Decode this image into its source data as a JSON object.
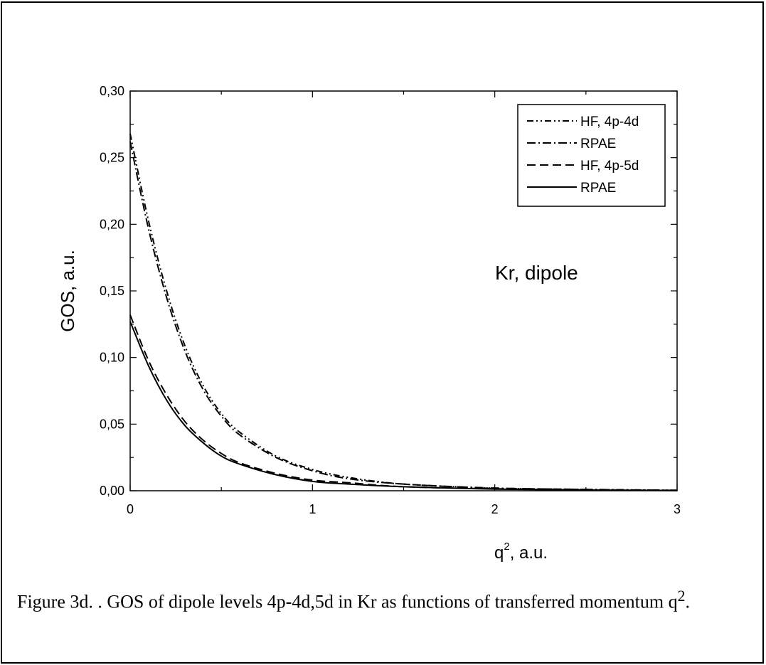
{
  "chart_data": {
    "type": "line",
    "xlabel_main": "q",
    "xlabel_sup": "2",
    "xlabel_rest": ", a.u.",
    "ylabel": "GOS,  a.u.",
    "annotation": "Kr, dipole",
    "xlim": [
      0,
      3
    ],
    "ylim": [
      0,
      0.3
    ],
    "xticks": [
      0,
      1,
      2,
      3
    ],
    "xtick_labels": [
      "0",
      "1",
      "2",
      "3"
    ],
    "yticks": [
      0,
      0.05,
      0.1,
      0.15,
      0.2,
      0.25,
      0.3
    ],
    "ytick_labels": [
      "0,00",
      "0,05",
      "0,10",
      "0,15",
      "0,20",
      "0,25",
      "0,30"
    ],
    "grid": false,
    "legend_position": "top-right",
    "x": [
      0,
      0.1,
      0.2,
      0.3,
      0.4,
      0.5,
      0.6,
      0.8,
      1.0,
      1.2,
      1.5,
      2.0,
      2.5,
      3.0
    ],
    "series": [
      {
        "name": "HF, 4p-4d",
        "style": "dash-dot-dot",
        "values": [
          0.268,
          0.203,
          0.15,
          0.109,
          0.079,
          0.058,
          0.044,
          0.026,
          0.016,
          0.01,
          0.005,
          0.002,
          0.001,
          0.0004
        ]
      },
      {
        "name": "RPAE",
        "style": "dash-dot",
        "values": [
          0.262,
          0.197,
          0.145,
          0.105,
          0.076,
          0.056,
          0.042,
          0.025,
          0.015,
          0.009,
          0.005,
          0.002,
          0.001,
          0.0003
        ]
      },
      {
        "name": "HF, 4p-5d",
        "style": "dash",
        "values": [
          0.132,
          0.098,
          0.072,
          0.052,
          0.038,
          0.028,
          0.021,
          0.013,
          0.008,
          0.006,
          0.003,
          0.0015,
          0.0006,
          0.0002
        ]
      },
      {
        "name": "RPAE",
        "style": "solid",
        "values": [
          0.127,
          0.094,
          0.068,
          0.049,
          0.036,
          0.026,
          0.02,
          0.012,
          0.007,
          0.005,
          0.003,
          0.0012,
          0.0005,
          0.0002
        ]
      }
    ]
  },
  "caption": {
    "text_main": "Figure 3d. . GOS of dipole levels 4p-4d,5d in Kr as functions of transferred momentum q",
    "text_sup": "2",
    "text_end": "."
  }
}
